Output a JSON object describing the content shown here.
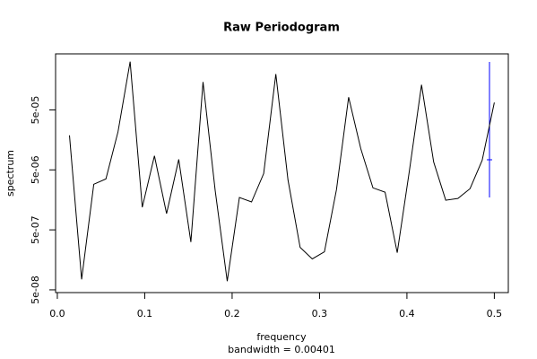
{
  "chart_data": {
    "type": "line",
    "title": "Raw Periodogram",
    "xlabel": "frequency",
    "subtitle": "bandwidth = 0.00401",
    "ylabel": "spectrum",
    "log_y": true,
    "color": "#000000",
    "x": [
      0.0139,
      0.0278,
      0.0417,
      0.0556,
      0.0694,
      0.0833,
      0.0972,
      0.1111,
      0.125,
      0.1389,
      0.1528,
      0.1667,
      0.1806,
      0.1944,
      0.2083,
      0.2222,
      0.2361,
      0.25,
      0.2639,
      0.2778,
      0.2917,
      0.3056,
      0.3194,
      0.3333,
      0.3472,
      0.3611,
      0.375,
      0.3889,
      0.4028,
      0.4167,
      0.4306,
      0.4444,
      0.4583,
      0.4722,
      0.4861,
      0.5
    ],
    "values": [
      1.88e-05,
      7.48e-08,
      2.88e-06,
      3.53e-06,
      2.15e-05,
      0.000319,
      1.19e-06,
      8.57e-06,
      9.33e-07,
      7.48e-06,
      3.13e-07,
      0.000146,
      2.27e-06,
      6.98e-08,
      1.73e-06,
      1.46e-06,
      4.34e-06,
      0.000198,
      3.41e-06,
      2.55e-07,
      1.64e-07,
      2.15e-07,
      2.35e-06,
      8.15e-05,
      1.13e-05,
      2.51e-06,
      2.12e-06,
      2.08e-07,
      4.8e-06,
      0.000131,
      6.76e-06,
      1.56e-06,
      1.67e-06,
      2.43e-06,
      7.23e-06,
      6.64e-05
    ],
    "xlim": [
      -0.002,
      0.516
    ],
    "ylim": [
      4.5e-08,
      0.00043
    ],
    "xticks": [
      {
        "value": 0,
        "label": "0.0"
      },
      0.1,
      0.2,
      0.3,
      0.4,
      0.5
    ],
    "yticks": [
      {
        "value": 5e-08,
        "label": "5e-08"
      },
      {
        "value": 5e-07,
        "label": "5e-07"
      },
      {
        "value": 5e-06,
        "label": "5e-06"
      },
      {
        "value": 5e-05,
        "label": "5e-05"
      }
    ]
  }
}
